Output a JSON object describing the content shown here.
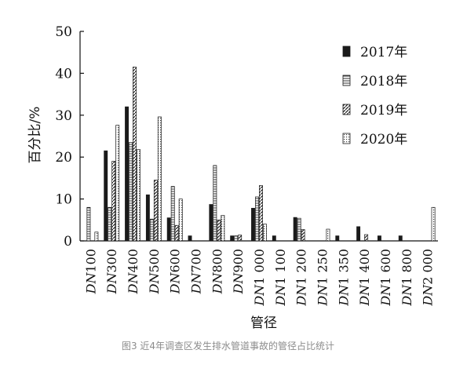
{
  "caption": "图3 近4年调查区发生排水管道事故的管径占比统计",
  "chart_data": {
    "type": "bar",
    "xlabel": "管径",
    "ylabel": "百分比/%",
    "ylim": [
      0,
      50
    ],
    "yticks": [
      0,
      10,
      20,
      30,
      40,
      50
    ],
    "grid": false,
    "legend_position": "top-right",
    "categories": [
      {
        "prefix": "DN",
        "num": "100"
      },
      {
        "prefix": "DN",
        "num": "300"
      },
      {
        "prefix": "DN",
        "num": "400"
      },
      {
        "prefix": "DN",
        "num": "500"
      },
      {
        "prefix": "DN",
        "num": "600"
      },
      {
        "prefix": "DN",
        "num": "700"
      },
      {
        "prefix": "DN",
        "num": "800"
      },
      {
        "prefix": "DN",
        "num": "900"
      },
      {
        "prefix": "DN",
        "num": "1 000"
      },
      {
        "prefix": "DN",
        "num": "1 100"
      },
      {
        "prefix": "DN",
        "num": "1 200"
      },
      {
        "prefix": "DN",
        "num": "1 250"
      },
      {
        "prefix": "DN",
        "num": "1 350"
      },
      {
        "prefix": "DN",
        "num": "1 400"
      },
      {
        "prefix": "DN",
        "num": "1 600"
      },
      {
        "prefix": "DN",
        "num": "1 800"
      },
      {
        "prefix": "DN",
        "num": "2 000"
      }
    ],
    "series": [
      {
        "name": "2017年",
        "pattern": "solid",
        "color": "#1a1a1a",
        "values": [
          0,
          21.5,
          32,
          11,
          5.5,
          1.2,
          8.7,
          1.2,
          7.8,
          1.2,
          5.6,
          0,
          1.2,
          3.4,
          1.2,
          1.2,
          0
        ]
      },
      {
        "name": "2018年",
        "pattern": "horizontal",
        "color": "#1a1a1a",
        "values": [
          8,
          8,
          23.5,
          5.2,
          13,
          0,
          18,
          1.2,
          10.5,
          0,
          5.4,
          0,
          0,
          0,
          0,
          0,
          0
        ]
      },
      {
        "name": "2019年",
        "pattern": "diagonal",
        "color": "#1a1a1a",
        "values": [
          0,
          19,
          41.5,
          14.5,
          3.7,
          0,
          5,
          1.4,
          13.2,
          0,
          2.7,
          0,
          0,
          1.5,
          0,
          0,
          0
        ]
      },
      {
        "name": "2020年",
        "pattern": "dotted",
        "color": "#1a1a1a",
        "values": [
          2.1,
          27.6,
          21.8,
          29.6,
          10,
          0,
          6.1,
          0,
          4,
          0,
          0,
          2.8,
          0,
          0,
          0,
          0,
          8
        ]
      }
    ]
  }
}
